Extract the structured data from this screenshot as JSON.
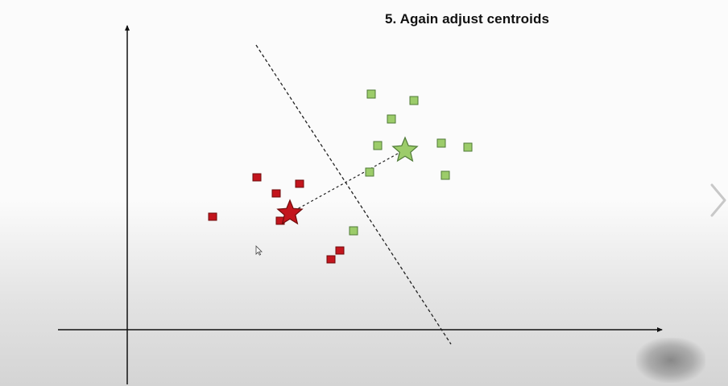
{
  "slide": {
    "title": "5. Again adjust centroids"
  },
  "colors": {
    "red_cluster_fill": "#c3151d",
    "red_cluster_stroke": "#6e0b0b",
    "green_cluster_fill": "#9ccc6a",
    "green_cluster_stroke": "#4f7a37",
    "axis": "#111111",
    "divider": "#222222"
  },
  "icons": {
    "next_slide": "chevron-right-icon",
    "cursor": "mouse-pointer-icon",
    "red_centroid": "star-icon",
    "green_centroid": "star-icon"
  }
}
